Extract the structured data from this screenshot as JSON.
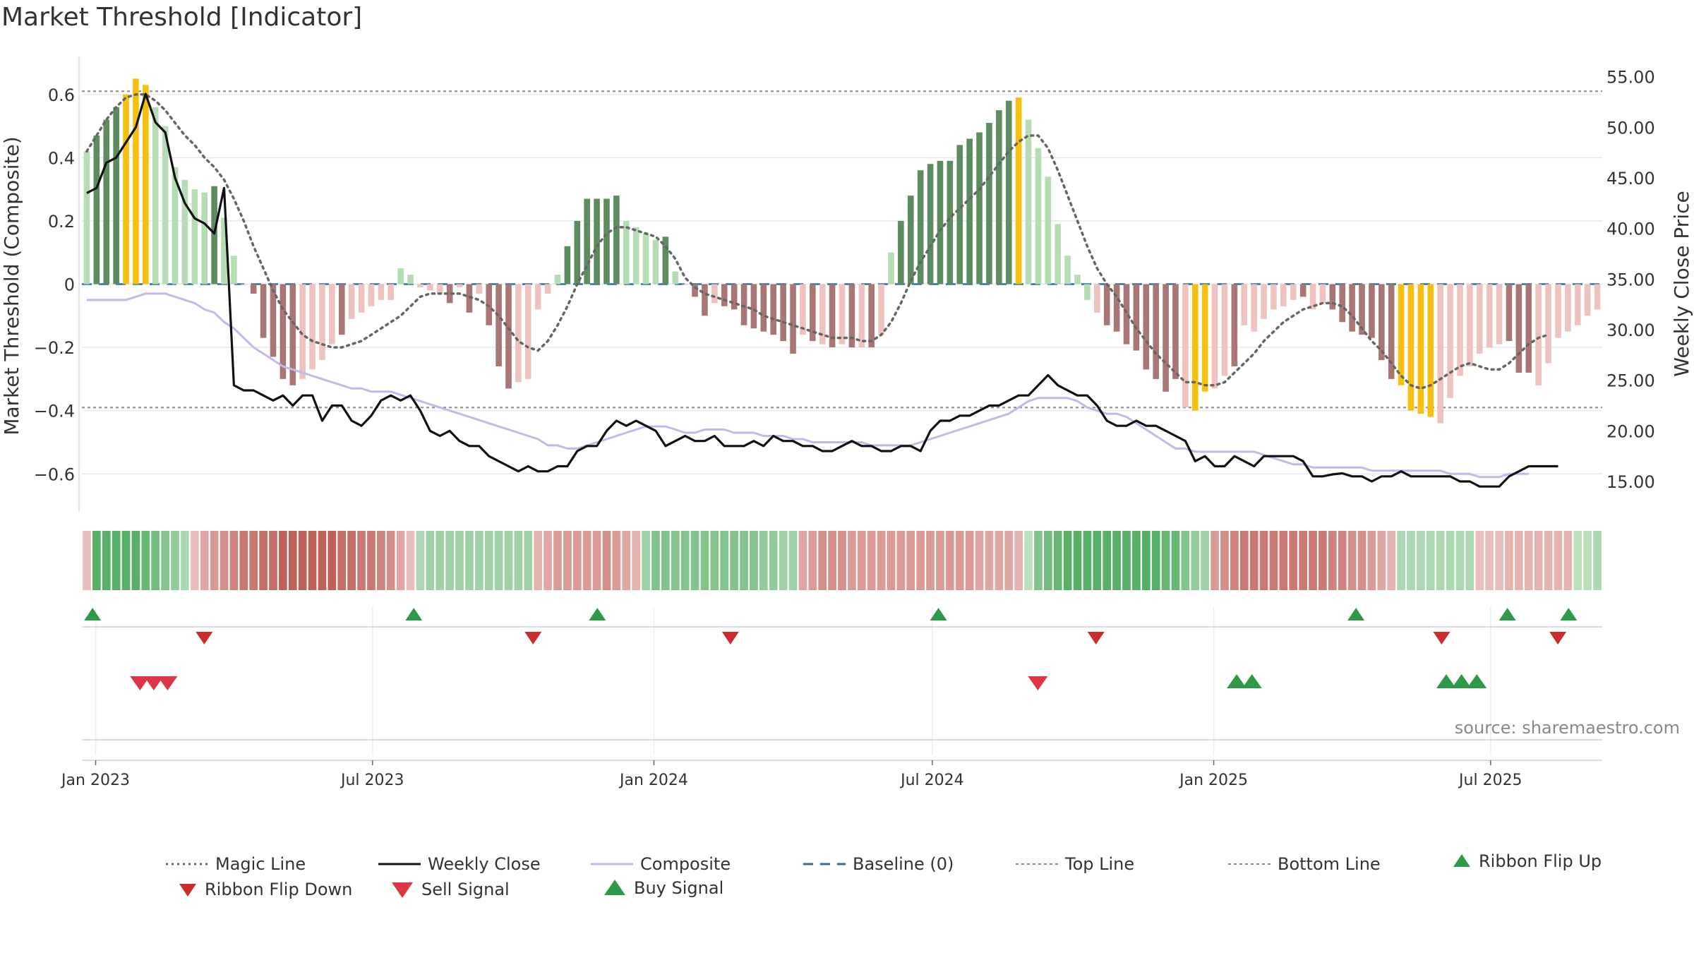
{
  "title": "Market Threshold [Indicator]",
  "source_note": "source: sharemaestro.com",
  "colors": {
    "strong_green": "#5e8c61",
    "light_green": "#b5dcb3",
    "strong_red": "#a87674",
    "light_red": "#eec2be",
    "peak": "#f7c010",
    "close": "#111111",
    "composite": "#c4b8ea",
    "magic": "#666666",
    "baseline": "#2f6f9f",
    "threshold": "#888888",
    "flip_up": "#2e9a47",
    "flip_down": "#cc2b2b",
    "sell": "#dc3545",
    "buy": "#2e9a47"
  },
  "chart_data": {
    "type": "bar+line",
    "x_axis": {
      "start": "2022-12-23",
      "end": "2025-09-12",
      "tick_labels": [
        "Jan 2023",
        "Jul 2023",
        "Jan 2024",
        "Jul 2024",
        "Jan 2025",
        "Jul 2025"
      ],
      "tick_dates": [
        "2023-01-01",
        "2023-07-01",
        "2024-01-01",
        "2024-07-01",
        "2025-01-01",
        "2025-07-01"
      ]
    },
    "left_axis": {
      "label": "Market Threshold (Composite)",
      "range": [
        -0.72,
        0.72
      ],
      "tick_values": [
        -0.6,
        -0.4,
        -0.2,
        0,
        0.2,
        0.4,
        0.6
      ],
      "tick_labels": [
        "−0.6",
        "−0.4",
        "−0.2",
        "0",
        "0.2",
        "0.4",
        "0.6"
      ]
    },
    "right_axis": {
      "label": "Weekly Close Price",
      "range": [
        12,
        57
      ],
      "tick_values": [
        15,
        20,
        25,
        30,
        35,
        40,
        45,
        50,
        55
      ],
      "tick_labels": [
        "15.00",
        "20.00",
        "25.00",
        "30.00",
        "35.00",
        "40.00",
        "45.00",
        "50.00",
        "55.00"
      ]
    },
    "top_line": 0.61,
    "bottom_line": -0.39,
    "baseline": 0,
    "threshold_bars": [
      0.42,
      0.47,
      0.52,
      0.56,
      0.6,
      0.65,
      0.63,
      0.56,
      0.5,
      0.37,
      0.33,
      0.3,
      0.29,
      0.31,
      0.21,
      0.09,
      0,
      -0.03,
      -0.17,
      -0.23,
      -0.3,
      -0.32,
      -0.3,
      -0.27,
      -0.24,
      -0.19,
      -0.16,
      -0.11,
      -0.09,
      -0.07,
      -0.05,
      -0.05,
      0.05,
      0.03,
      -0.01,
      -0.02,
      -0.03,
      -0.06,
      -0.01,
      -0.09,
      -0.03,
      -0.13,
      -0.26,
      -0.33,
      -0.31,
      -0.3,
      -0.08,
      -0.03,
      0.03,
      0.12,
      0.2,
      0.27,
      0.27,
      0.27,
      0.28,
      0.2,
      0.18,
      0.16,
      0.14,
      0.15,
      0.04,
      0,
      -0.04,
      -0.1,
      -0.06,
      -0.07,
      -0.08,
      -0.13,
      -0.14,
      -0.15,
      -0.16,
      -0.18,
      -0.22,
      -0.16,
      -0.18,
      -0.19,
      -0.2,
      -0.19,
      -0.2,
      -0.2,
      -0.2,
      -0.16,
      0.1,
      0.2,
      0.28,
      0.36,
      0.38,
      0.39,
      0.39,
      0.44,
      0.46,
      0.48,
      0.51,
      0.55,
      0.58,
      0.59,
      0.52,
      0.43,
      0.34,
      0.19,
      0.09,
      0.03,
      -0.05,
      -0.09,
      -0.13,
      -0.15,
      -0.19,
      -0.21,
      -0.27,
      -0.3,
      -0.34,
      -0.3,
      -0.39,
      -0.4,
      -0.34,
      -0.33,
      -0.29,
      -0.26,
      -0.13,
      -0.15,
      -0.11,
      -0.08,
      -0.07,
      -0.05,
      -0.04,
      -0.08,
      -0.06,
      -0.08,
      -0.12,
      -0.15,
      -0.16,
      -0.17,
      -0.24,
      -0.3,
      -0.32,
      -0.4,
      -0.41,
      -0.42,
      -0.44,
      -0.36,
      -0.29,
      -0.26,
      -0.22,
      -0.2,
      -0.19,
      -0.18,
      -0.28,
      -0.28,
      -0.32,
      -0.25,
      -0.17,
      -0.15,
      -0.13,
      -0.1,
      -0.08
    ],
    "bar_kinds": [
      "lg",
      "sg",
      "sg",
      "sg",
      "pk",
      "pk",
      "pk",
      "lg",
      "lg",
      "lg",
      "lg",
      "lg",
      "lg",
      "sg",
      "lg",
      "lg",
      "lg",
      "sr",
      "sr",
      "sr",
      "sr",
      "sr",
      "lr",
      "lr",
      "lr",
      "lr",
      "sr",
      "lr",
      "lr",
      "lr",
      "lr",
      "lr",
      "lg",
      "lg",
      "lr",
      "lr",
      "lr",
      "sr",
      "lr",
      "sr",
      "lr",
      "sr",
      "sr",
      "sr",
      "lr",
      "lr",
      "lr",
      "lr",
      "lg",
      "sg",
      "sg",
      "sg",
      "sg",
      "sg",
      "sg",
      "lg",
      "lg",
      "lg",
      "lg",
      "sg",
      "lg",
      "lr",
      "sr",
      "sr",
      "lr",
      "sr",
      "sr",
      "sr",
      "sr",
      "sr",
      "sr",
      "sr",
      "sr",
      "lr",
      "sr",
      "lr",
      "sr",
      "lr",
      "sr",
      "lr",
      "sr",
      "lr",
      "lg",
      "sg",
      "sg",
      "sg",
      "sg",
      "sg",
      "sg",
      "sg",
      "sg",
      "sg",
      "sg",
      "sg",
      "sg",
      "pk",
      "lg",
      "lg",
      "lg",
      "lg",
      "lg",
      "lg",
      "lg",
      "lr",
      "sr",
      "sr",
      "sr",
      "sr",
      "sr",
      "sr",
      "sr",
      "sr",
      "lr",
      "pk",
      "pk",
      "lr",
      "lr",
      "sr",
      "lr",
      "lr",
      "lr",
      "lr",
      "lr",
      "lr",
      "sr",
      "lr",
      "lr",
      "sr",
      "sr",
      "sr",
      "sr",
      "sr",
      "sr",
      "sr",
      "pk",
      "pk",
      "pk",
      "pk",
      "lr",
      "lr",
      "lr",
      "lr",
      "lr",
      "lr",
      "lr",
      "sr",
      "sr",
      "sr",
      "lr",
      "lr",
      "lr",
      "lr",
      "lr",
      "lr"
    ],
    "magic_line": [
      0.42,
      0.47,
      0.52,
      0.56,
      0.59,
      0.6,
      0.6,
      0.58,
      0.55,
      0.51,
      0.47,
      0.44,
      0.4,
      0.37,
      0.33,
      0.27,
      0.2,
      0.12,
      0.05,
      -0.02,
      -0.08,
      -0.12,
      -0.16,
      -0.18,
      -0.19,
      -0.2,
      -0.2,
      -0.19,
      -0.18,
      -0.16,
      -0.14,
      -0.12,
      -0.1,
      -0.07,
      -0.04,
      -0.03,
      -0.03,
      -0.03,
      -0.03,
      -0.04,
      -0.05,
      -0.07,
      -0.1,
      -0.14,
      -0.18,
      -0.2,
      -0.21,
      -0.18,
      -0.13,
      -0.07,
      0,
      0.06,
      0.12,
      0.16,
      0.18,
      0.18,
      0.17,
      0.16,
      0.15,
      0.12,
      0.08,
      0.02,
      -0.01,
      -0.03,
      -0.04,
      -0.05,
      -0.06,
      -0.07,
      -0.08,
      -0.1,
      -0.11,
      -0.12,
      -0.13,
      -0.14,
      -0.15,
      -0.16,
      -0.17,
      -0.17,
      -0.17,
      -0.18,
      -0.18,
      -0.16,
      -0.12,
      -0.06,
      0.01,
      0.07,
      0.12,
      0.17,
      0.21,
      0.24,
      0.27,
      0.3,
      0.34,
      0.38,
      0.42,
      0.45,
      0.47,
      0.47,
      0.43,
      0.36,
      0.28,
      0.2,
      0.12,
      0.05,
      0,
      -0.04,
      -0.09,
      -0.14,
      -0.18,
      -0.22,
      -0.25,
      -0.28,
      -0.31,
      -0.31,
      -0.32,
      -0.32,
      -0.31,
      -0.28,
      -0.25,
      -0.22,
      -0.18,
      -0.15,
      -0.12,
      -0.1,
      -0.08,
      -0.07,
      -0.06,
      -0.06,
      -0.07,
      -0.1,
      -0.14,
      -0.18,
      -0.21,
      -0.25,
      -0.29,
      -0.32,
      -0.33,
      -0.32,
      -0.3,
      -0.28,
      -0.26,
      -0.25,
      -0.26,
      -0.27,
      -0.27,
      -0.25,
      -0.22,
      -0.19,
      -0.17,
      -0.16
    ],
    "weekly_close": [
      43.5,
      44,
      46.5,
      47,
      48.5,
      50,
      53.3,
      50.5,
      49.5,
      45,
      42.5,
      41,
      40.5,
      39.5,
      44,
      24.5,
      24,
      24,
      23.5,
      23,
      23.5,
      22.5,
      23.5,
      23.5,
      21,
      22.5,
      22.5,
      21,
      20.5,
      21.5,
      23,
      23.5,
      23,
      23.5,
      22,
      20,
      19.5,
      20,
      19,
      18.5,
      18.5,
      17.5,
      17,
      16.5,
      16,
      16.5,
      16,
      16,
      16.5,
      16.5,
      18,
      18.5,
      18.5,
      20,
      21,
      20.5,
      21,
      20.5,
      20,
      18.5,
      19,
      19.5,
      19,
      19,
      19.5,
      18.5,
      18.5,
      18.5,
      19,
      18.5,
      19.5,
      19,
      19,
      18.5,
      18.5,
      18,
      18,
      18.5,
      19,
      18.5,
      18.5,
      18,
      18,
      18.5,
      18.5,
      18,
      20,
      21,
      21,
      21.5,
      21.5,
      22,
      22.5,
      22.5,
      23,
      23.5,
      23.5,
      24.5,
      25.5,
      24.5,
      24,
      23.5,
      23.5,
      22.5,
      21,
      20.5,
      20.5,
      21,
      20.5,
      20.5,
      20,
      19.5,
      19,
      17,
      17.5,
      16.5,
      16.5,
      17.5,
      17,
      16.5,
      17.5,
      17.5,
      17.5,
      17.5,
      17,
      15.5,
      15.5,
      15.7,
      15.8,
      15.5,
      15.5,
      15,
      15.5,
      15.5,
      16,
      15.5,
      15.5,
      15.5,
      15.5,
      15.5,
      15,
      15,
      14.5,
      14.5,
      14.5,
      15.5,
      16,
      16.5,
      16.5,
      16.5,
      16.5
    ],
    "composite": [
      -0.05,
      -0.05,
      -0.05,
      -0.05,
      -0.05,
      -0.04,
      -0.03,
      -0.03,
      -0.03,
      -0.04,
      -0.05,
      -0.06,
      -0.08,
      -0.09,
      -0.12,
      -0.14,
      -0.17,
      -0.2,
      -0.22,
      -0.24,
      -0.26,
      -0.27,
      -0.28,
      -0.29,
      -0.3,
      -0.31,
      -0.32,
      -0.33,
      -0.33,
      -0.34,
      -0.34,
      -0.34,
      -0.35,
      -0.36,
      -0.37,
      -0.38,
      -0.39,
      -0.4,
      -0.41,
      -0.42,
      -0.43,
      -0.44,
      -0.45,
      -0.46,
      -0.47,
      -0.48,
      -0.49,
      -0.51,
      -0.51,
      -0.52,
      -0.52,
      -0.51,
      -0.5,
      -0.49,
      -0.48,
      -0.47,
      -0.46,
      -0.45,
      -0.45,
      -0.45,
      -0.46,
      -0.47,
      -0.47,
      -0.46,
      -0.46,
      -0.46,
      -0.47,
      -0.47,
      -0.47,
      -0.48,
      -0.48,
      -0.48,
      -0.49,
      -0.49,
      -0.5,
      -0.5,
      -0.5,
      -0.5,
      -0.5,
      -0.5,
      -0.51,
      -0.51,
      -0.51,
      -0.51,
      -0.51,
      -0.5,
      -0.49,
      -0.48,
      -0.47,
      -0.46,
      -0.45,
      -0.44,
      -0.43,
      -0.42,
      -0.41,
      -0.39,
      -0.37,
      -0.36,
      -0.36,
      -0.36,
      -0.36,
      -0.37,
      -0.39,
      -0.4,
      -0.41,
      -0.41,
      -0.42,
      -0.44,
      -0.46,
      -0.48,
      -0.5,
      -0.52,
      -0.52,
      -0.53,
      -0.53,
      -0.53,
      -0.53,
      -0.53,
      -0.53,
      -0.53,
      -0.54,
      -0.55,
      -0.56,
      -0.57,
      -0.57,
      -0.58,
      -0.58,
      -0.58,
      -0.58,
      -0.58,
      -0.58,
      -0.59,
      -0.59,
      -0.59,
      -0.59,
      -0.59,
      -0.59,
      -0.59,
      -0.59,
      -0.6,
      -0.6,
      -0.6,
      -0.61,
      -0.61,
      -0.61,
      -0.6,
      -0.6,
      -0.6
    ],
    "ribbon_values": [
      -0.2,
      0.9,
      0.9,
      0.9,
      0.9,
      0.9,
      0.8,
      0.7,
      0.6,
      0.5,
      0.3,
      -0.2,
      -0.4,
      -0.5,
      -0.6,
      -0.7,
      -0.8,
      -0.8,
      -0.9,
      -0.9,
      -1,
      -1,
      -1,
      -1,
      -1,
      -1,
      -0.9,
      -0.9,
      -0.8,
      -0.8,
      -0.7,
      -0.6,
      -0.4,
      -0.2,
      0.3,
      0.4,
      0.4,
      0.4,
      0.4,
      0.4,
      0.4,
      0.4,
      0.4,
      0.4,
      0.4,
      0.4,
      -0.3,
      -0.4,
      -0.5,
      -0.5,
      -0.5,
      -0.5,
      -0.5,
      -0.6,
      -0.5,
      -0.4,
      -0.3,
      0.4,
      0.6,
      0.6,
      0.6,
      0.6,
      0.6,
      0.6,
      0.6,
      0.6,
      0.6,
      0.6,
      0.6,
      0.5,
      0.5,
      0.4,
      0.4,
      -0.4,
      -0.5,
      -0.6,
      -0.6,
      -0.6,
      -0.5,
      -0.5,
      -0.5,
      -0.5,
      -0.5,
      -0.5,
      -0.5,
      -0.5,
      -0.5,
      -0.5,
      -0.5,
      -0.5,
      -0.5,
      -0.4,
      -0.4,
      -0.4,
      -0.4,
      -0.3,
      0.2,
      0.6,
      0.7,
      0.8,
      0.9,
      0.9,
      0.9,
      0.9,
      0.9,
      0.9,
      0.9,
      0.9,
      0.9,
      0.9,
      0.8,
      0.8,
      0.6,
      0.5,
      0.4,
      -0.5,
      -0.6,
      -0.7,
      -0.8,
      -0.8,
      -0.8,
      -0.8,
      -0.8,
      -0.8,
      -0.8,
      -0.8,
      -0.8,
      -0.7,
      -0.7,
      -0.6,
      -0.6,
      -0.5,
      -0.4,
      -0.3,
      0.3,
      0.3,
      0.3,
      0.3,
      0.3,
      0.3,
      0.3,
      0.3,
      -0.2,
      -0.2,
      -0.2,
      -0.3,
      -0.3,
      -0.3,
      -0.3,
      -0.3,
      -0.3,
      -0.3,
      0.2,
      0.2,
      0.3
    ],
    "ribbon_flip_up_dates": [
      "2022-12-30",
      "2023-07-28",
      "2023-11-25",
      "2024-07-05",
      "2025-04-04",
      "2025-07-12",
      "2025-08-21"
    ],
    "ribbon_flip_down_dates": [
      "2023-03-13",
      "2023-10-14",
      "2024-02-20",
      "2024-10-16",
      "2025-05-30",
      "2025-08-14"
    ],
    "sell_signal_dates": [
      "2023-01-30",
      "2023-02-08",
      "2023-02-17",
      "2024-09-08"
    ],
    "buy_signal_dates": [
      "2025-01-16",
      "2025-01-26",
      "2025-06-02",
      "2025-06-12",
      "2025-06-22"
    ],
    "legend": [
      {
        "label": "Magic Line",
        "style": "dotted-line"
      },
      {
        "label": "Weekly Close",
        "style": "line"
      },
      {
        "label": "Composite",
        "style": "line"
      },
      {
        "label": "Baseline (0)",
        "style": "dashed-line"
      },
      {
        "label": "Top Line",
        "style": "dotted-line"
      },
      {
        "label": "Bottom Line",
        "style": "dotted-line"
      },
      {
        "label": "Ribbon Flip Up",
        "style": "triangle-up"
      },
      {
        "label": "Ribbon Flip Down",
        "style": "triangle-down"
      },
      {
        "label": "Sell Signal",
        "style": "triangle-down"
      },
      {
        "label": "Buy Signal",
        "style": "triangle-up"
      }
    ]
  }
}
